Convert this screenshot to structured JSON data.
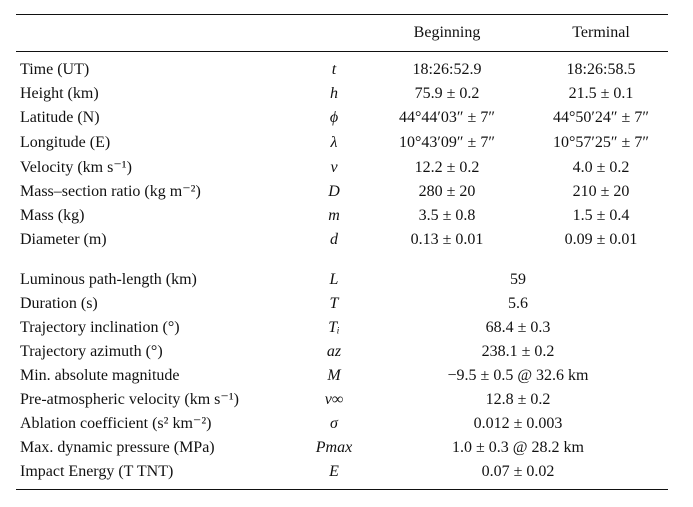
{
  "header": {
    "beginning": "Beginning",
    "terminal": "Terminal"
  },
  "rows_paired": [
    {
      "param": "Time (UT)",
      "symbol": "t",
      "beginning": "18:26:52.9",
      "terminal": "18:26:58.5"
    },
    {
      "param": "Height (km)",
      "symbol": "h",
      "beginning": "75.9 ± 0.2",
      "terminal": "21.5 ± 0.1"
    },
    {
      "param": "Latitude (N)",
      "symbol": "ϕ",
      "beginning": "44°44′03″ ± 7″",
      "terminal": "44°50′24″ ± 7″"
    },
    {
      "param": "Longitude (E)",
      "symbol": "λ",
      "beginning": "10°43′09″ ± 7″",
      "terminal": "10°57′25″ ± 7″"
    },
    {
      "param": "Velocity (km s⁻¹)",
      "symbol": "v",
      "beginning": "12.2 ± 0.2",
      "terminal": "4.0 ± 0.2"
    },
    {
      "param": "Mass–section ratio (kg m⁻²)",
      "symbol": "D",
      "beginning": "280 ± 20",
      "terminal": "210 ± 20"
    },
    {
      "param": "Mass (kg)",
      "symbol": "m",
      "beginning": "3.5 ± 0.8",
      "terminal": "1.5 ± 0.4"
    },
    {
      "param": "Diameter (m)",
      "symbol": "d",
      "beginning": "0.13 ± 0.01",
      "terminal": "0.09 ± 0.01"
    }
  ],
  "rows_single": [
    {
      "param": "Luminous path-length (km)",
      "symbol": "L",
      "value": "59"
    },
    {
      "param": "Duration (s)",
      "symbol": "T",
      "value": "5.6"
    },
    {
      "param": "Trajectory inclination (°)",
      "symbol": "Tᵢ",
      "value": "68.4 ± 0.3"
    },
    {
      "param": "Trajectory azimuth (°)",
      "symbol": "az",
      "value": "238.1 ± 0.2"
    },
    {
      "param": "Min. absolute magnitude",
      "symbol": "M",
      "value": "−9.5 ± 0.5 @ 32.6 km"
    },
    {
      "param": "Pre-atmospheric velocity (km s⁻¹)",
      "symbol": "v∞",
      "value": "12.8 ± 0.2"
    },
    {
      "param": "Ablation coefficient (s² km⁻²)",
      "symbol": "σ",
      "value": "0.012 ± 0.003"
    },
    {
      "param": "Max. dynamic pressure (MPa)",
      "symbol": "Pmax",
      "value": "1.0 ± 0.3 @ 28.2 km"
    },
    {
      "param": "Impact Energy (T TNT)",
      "symbol": "E",
      "value": "0.07 ± 0.02"
    }
  ]
}
